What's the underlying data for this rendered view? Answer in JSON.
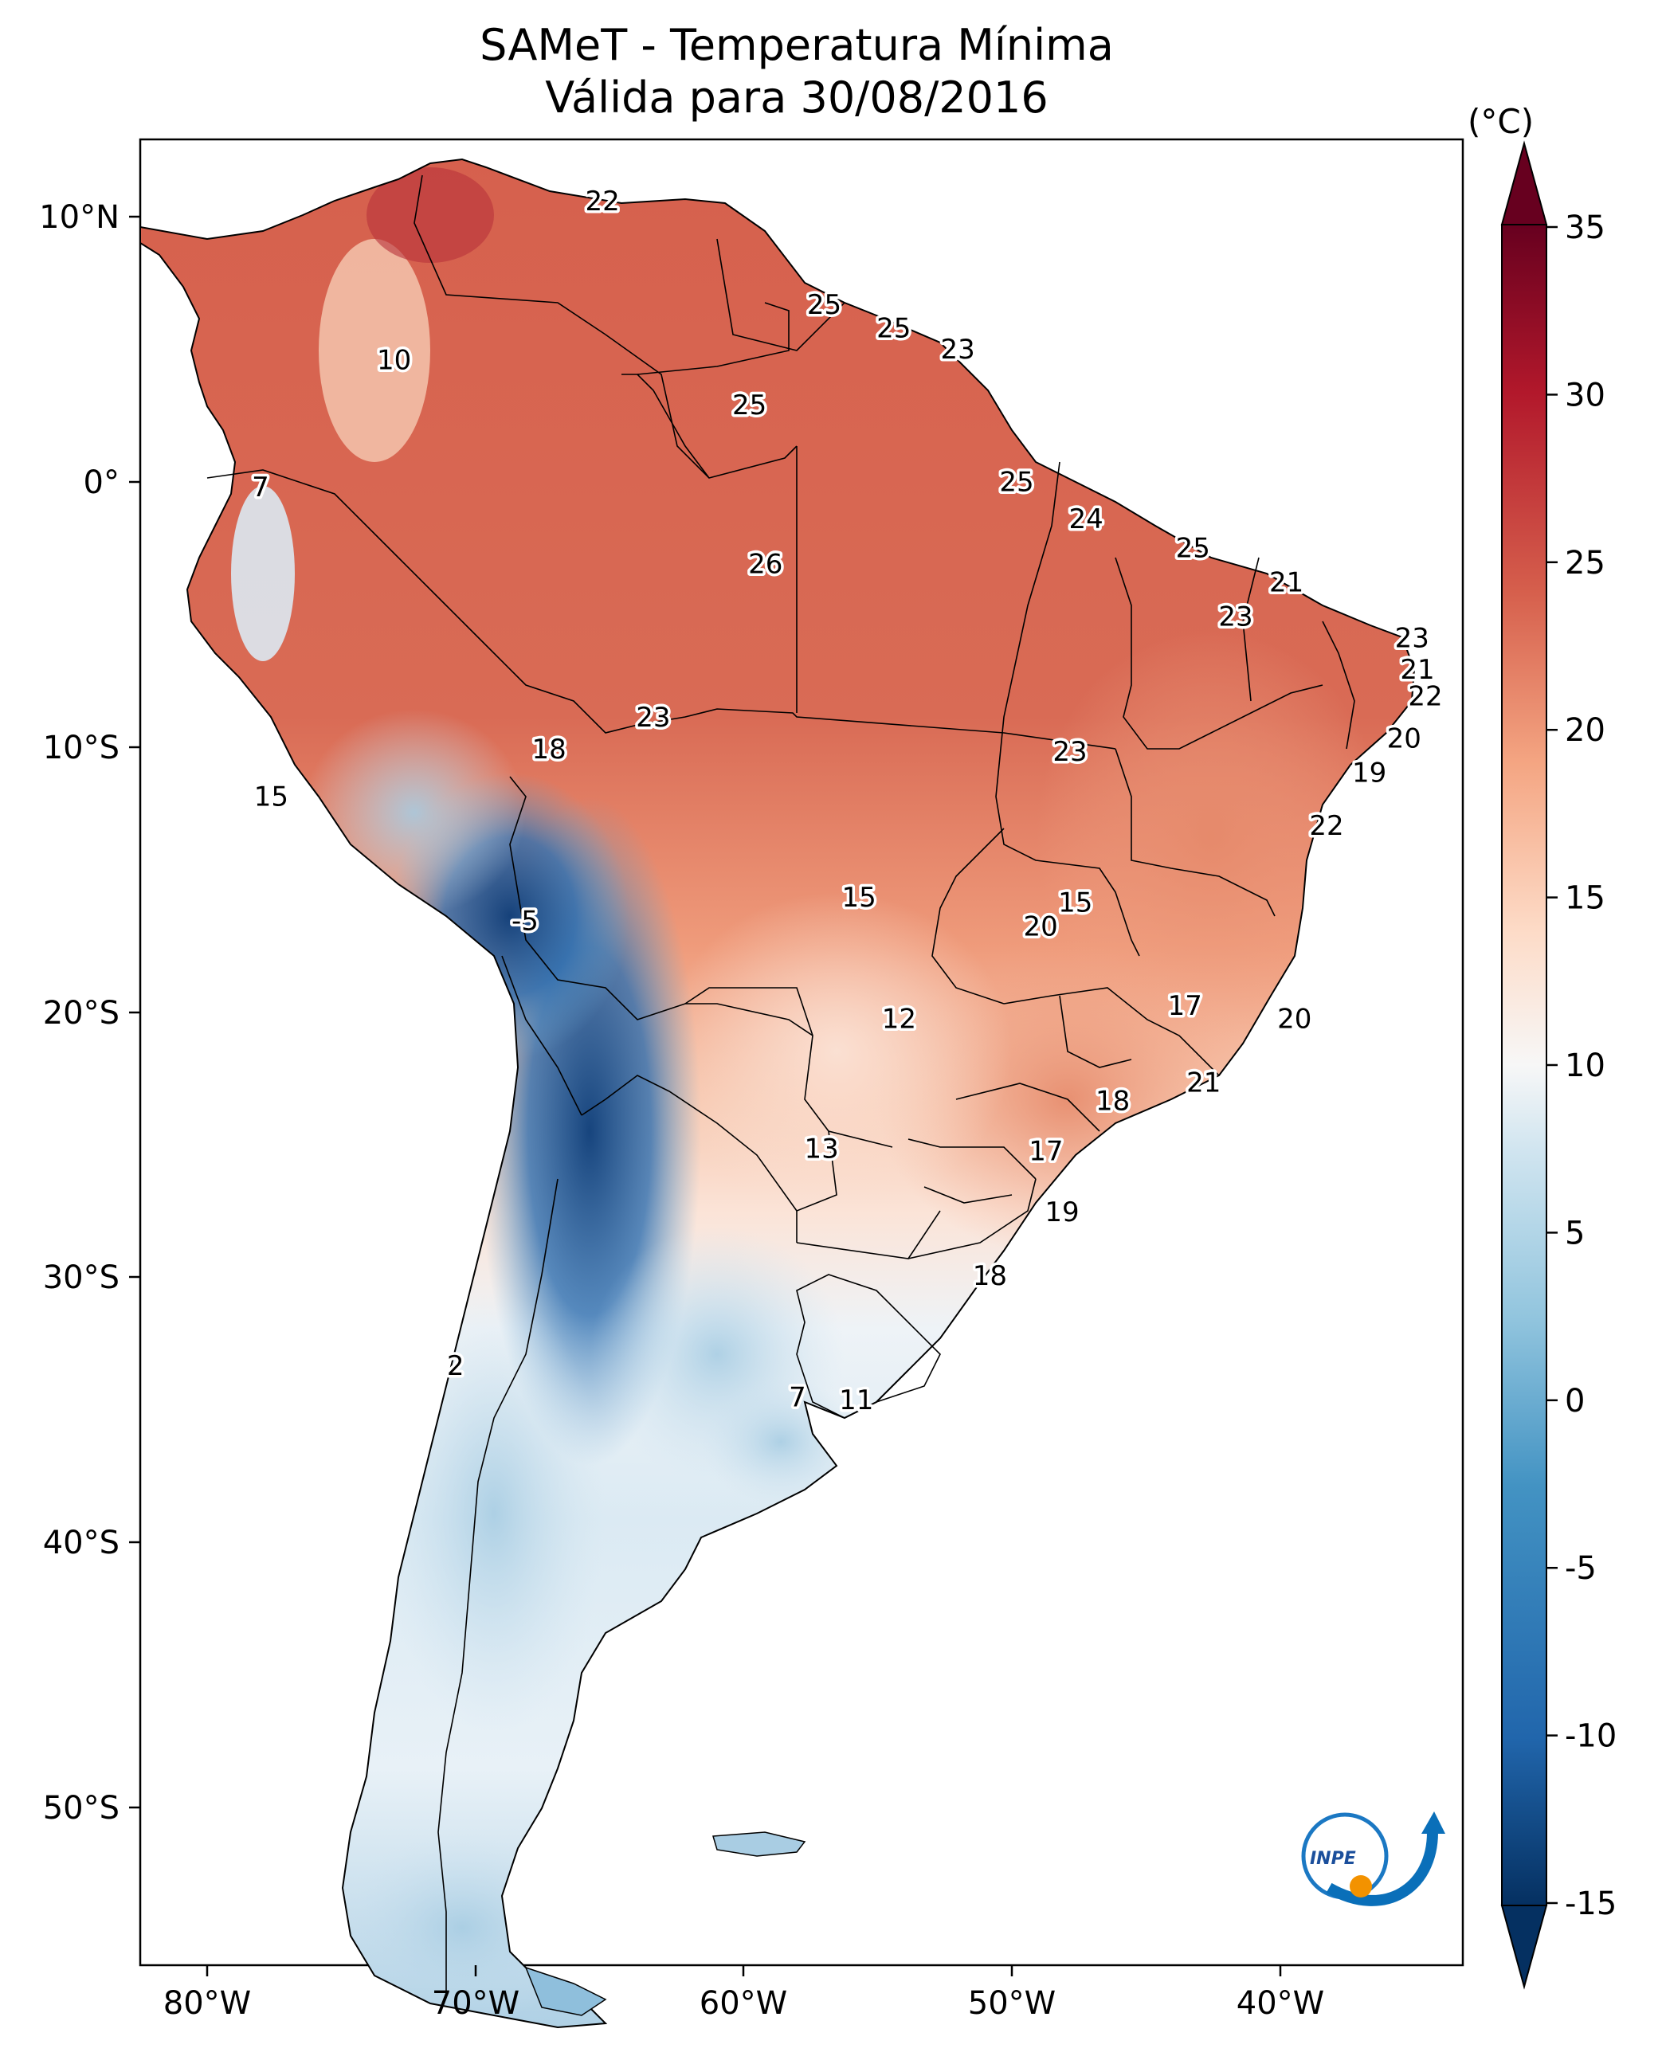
{
  "title": {
    "line1": "SAMeT - Temperatura Mínima",
    "line2": "Válida para 30/08/2016"
  },
  "colorbar": {
    "unit": "(°C)",
    "min": -15,
    "max": 35,
    "ticks": [
      "35",
      "30",
      "25",
      "20",
      "15",
      "10",
      "5",
      "0",
      "-5",
      "-10",
      "-15"
    ],
    "colors": {
      "cold_extreme": "#053061",
      "cold": "#2166ac",
      "cool": "#92c5de",
      "neutral": "#f7f7f7",
      "mild": "#fddbc7",
      "warm": "#ef8a62",
      "hot": "#d6604d",
      "hot_extreme": "#67001f"
    }
  },
  "map": {
    "lon_ticks": [
      "80°W",
      "70°W",
      "60°W",
      "50°W",
      "40°W"
    ],
    "lat_ticks": [
      "10°N",
      "0°",
      "10°S",
      "20°S",
      "30°S",
      "40°S",
      "50°S"
    ],
    "lon_range": [
      -83,
      -33.5
    ],
    "lat_range": [
      -56,
      13
    ]
  },
  "temperature_labels": [
    {
      "value": "22",
      "lon": -65.7,
      "lat": 10.6
    },
    {
      "value": "10",
      "lon": -73.5,
      "lat": 4.6
    },
    {
      "value": "25",
      "lon": -57.4,
      "lat": 6.7
    },
    {
      "value": "25",
      "lon": -54.8,
      "lat": 5.8
    },
    {
      "value": "23",
      "lon": -52.4,
      "lat": 5.0
    },
    {
      "value": "25",
      "lon": -60.2,
      "lat": 2.9
    },
    {
      "value": "7",
      "lon": -78.5,
      "lat": -0.2
    },
    {
      "value": "25",
      "lon": -50.2,
      "lat": 0.0
    },
    {
      "value": "24",
      "lon": -47.6,
      "lat": -1.4
    },
    {
      "value": "26",
      "lon": -59.6,
      "lat": -3.1
    },
    {
      "value": "25",
      "lon": -43.6,
      "lat": -2.5
    },
    {
      "value": "21",
      "lon": -40.1,
      "lat": -3.8
    },
    {
      "value": "23",
      "lon": -42.0,
      "lat": -5.1
    },
    {
      "value": "23",
      "lon": -35.4,
      "lat": -5.9
    },
    {
      "value": "21",
      "lon": -35.2,
      "lat": -7.1
    },
    {
      "value": "22",
      "lon": -34.9,
      "lat": -8.1
    },
    {
      "value": "23",
      "lon": -63.8,
      "lat": -8.9
    },
    {
      "value": "18",
      "lon": -67.7,
      "lat": -10.1
    },
    {
      "value": "23",
      "lon": -48.2,
      "lat": -10.2
    },
    {
      "value": "20",
      "lon": -35.7,
      "lat": -9.7
    },
    {
      "value": "19",
      "lon": -37.0,
      "lat": -11.0
    },
    {
      "value": "15",
      "lon": -78.1,
      "lat": -11.9
    },
    {
      "value": "22",
      "lon": -38.6,
      "lat": -13.0
    },
    {
      "value": "15",
      "lon": -56.1,
      "lat": -15.7
    },
    {
      "value": "15",
      "lon": -48.0,
      "lat": -15.9
    },
    {
      "value": "20",
      "lon": -49.3,
      "lat": -16.8
    },
    {
      "value": "-5",
      "lon": -68.6,
      "lat": -16.6
    },
    {
      "value": "17",
      "lon": -43.9,
      "lat": -19.8
    },
    {
      "value": "12",
      "lon": -54.6,
      "lat": -20.3
    },
    {
      "value": "20",
      "lon": -39.8,
      "lat": -20.3
    },
    {
      "value": "21",
      "lon": -43.2,
      "lat": -22.7
    },
    {
      "value": "18",
      "lon": -46.6,
      "lat": -23.4
    },
    {
      "value": "13",
      "lon": -57.5,
      "lat": -25.2
    },
    {
      "value": "17",
      "lon": -49.1,
      "lat": -25.3
    },
    {
      "value": "19",
      "lon": -48.5,
      "lat": -27.6
    },
    {
      "value": "18",
      "lon": -51.2,
      "lat": -30.0
    },
    {
      "value": "2",
      "lon": -71.2,
      "lat": -33.4
    },
    {
      "value": "7",
      "lon": -58.4,
      "lat": -34.6
    },
    {
      "value": "11",
      "lon": -56.2,
      "lat": -34.7
    }
  ],
  "logo": {
    "text": "INPE"
  }
}
